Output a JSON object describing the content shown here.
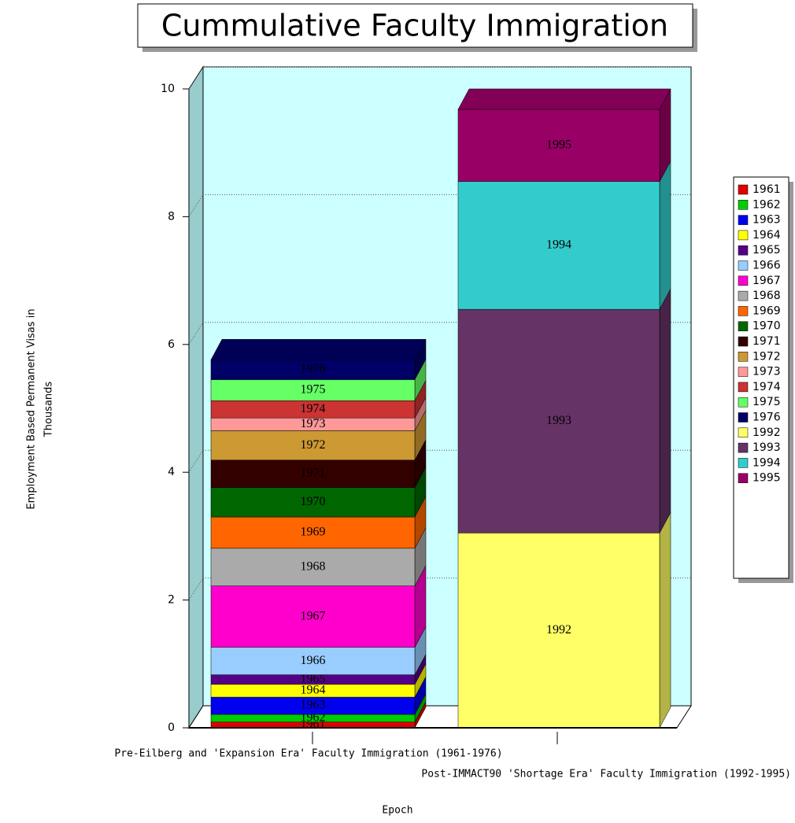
{
  "chart_data": {
    "type": "bar",
    "stacked": true,
    "title": "Cummulative Faculty Immigration",
    "ylabel": [
      "Employment Based Permanent Visas in",
      "Thousands"
    ],
    "xlabel": "Epoch",
    "categories": [
      "Pre-Eilberg and 'Expansion Era' Faculty Immigration (1961-1976)",
      "Post-IMMACT90 'Shortage Era' Faculty Immigration (1992-1995)"
    ],
    "ylim": [
      0,
      10
    ],
    "yticks": [
      0,
      2,
      4,
      6,
      8,
      10
    ],
    "grid": true,
    "legend": "right",
    "series": [
      {
        "name": "1961",
        "color": "#e00000",
        "values": [
          0.09,
          null
        ]
      },
      {
        "name": "1962",
        "color": "#00cc00",
        "values": [
          0.12,
          null
        ]
      },
      {
        "name": "1963",
        "color": "#0000ee",
        "values": [
          0.27,
          null
        ]
      },
      {
        "name": "1964",
        "color": "#ffff00",
        "values": [
          0.2,
          null
        ]
      },
      {
        "name": "1965",
        "color": "#550088",
        "values": [
          0.15,
          null
        ]
      },
      {
        "name": "1966",
        "color": "#99ccff",
        "values": [
          0.43,
          null
        ]
      },
      {
        "name": "1967",
        "color": "#ff00cc",
        "values": [
          0.96,
          null
        ]
      },
      {
        "name": "1968",
        "color": "#aaaaaa",
        "values": [
          0.59,
          null
        ]
      },
      {
        "name": "1969",
        "color": "#ff6600",
        "values": [
          0.49,
          null
        ]
      },
      {
        "name": "1970",
        "color": "#006600",
        "values": [
          0.46,
          null
        ]
      },
      {
        "name": "1971",
        "color": "#330000",
        "values": [
          0.43,
          null
        ]
      },
      {
        "name": "1972",
        "color": "#cc9933",
        "values": [
          0.46,
          null
        ]
      },
      {
        "name": "1973",
        "color": "#ff9999",
        "values": [
          0.2,
          null
        ]
      },
      {
        "name": "1974",
        "color": "#cc3333",
        "values": [
          0.27,
          null
        ]
      },
      {
        "name": "1975",
        "color": "#66ff66",
        "values": [
          0.33,
          null
        ]
      },
      {
        "name": "1976",
        "color": "#000066",
        "values": [
          0.31,
          null
        ]
      },
      {
        "name": "1992",
        "color": "#ffff66",
        "values": [
          null,
          3.05
        ]
      },
      {
        "name": "1993",
        "color": "#663366",
        "values": [
          null,
          3.5
        ]
      },
      {
        "name": "1994",
        "color": "#33cccc",
        "values": [
          null,
          2.0
        ]
      },
      {
        "name": "1995",
        "color": "#990066",
        "values": [
          null,
          1.13
        ]
      }
    ]
  }
}
